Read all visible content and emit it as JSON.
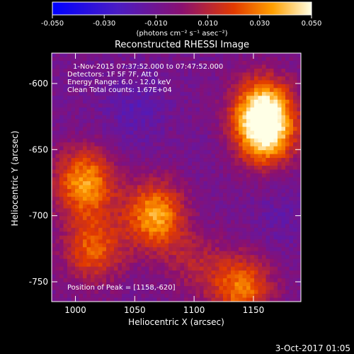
{
  "colorbar": {
    "ticks": [
      "-0.050",
      "-0.030",
      "-0.010",
      "0.010",
      "0.030",
      "0.050"
    ],
    "tick_values": [
      -0.05,
      -0.03,
      -0.01,
      0.01,
      0.03,
      0.05
    ],
    "range": [
      -0.05,
      0.05
    ],
    "unit_label": "(photons cm⁻² s⁻¹ asec⁻²)"
  },
  "chart_data": {
    "type": "heatmap",
    "title": "Reconstructed RHESSI Image",
    "xlabel": "Heliocentric X (arcsec)",
    "ylabel": "Heliocentric Y (arcsec)",
    "xlim": [
      980,
      1190
    ],
    "ylim": [
      -765,
      -577
    ],
    "xticks": [
      1000,
      1050,
      1100,
      1150
    ],
    "yticks": [
      -600,
      -650,
      -700,
      -750
    ],
    "annotations": [
      "1-Nov-2015 07:37:52.000 to 07:47:52.000",
      "Detectors: 1F 5F 7F, Att 0",
      "Energy Range: 6.0 - 12.0 keV",
      "Clean     Total counts: 1.67E+04"
    ],
    "peak_label": "Position of Peak = [1158,-620]",
    "peak": [
      1158,
      -620
    ],
    "bright_regions": [
      {
        "x": 1158,
        "y": -620,
        "value": 0.05
      },
      {
        "x": 1160,
        "y": -640,
        "value": 0.04
      },
      {
        "x": 1008,
        "y": -675,
        "value": 0.042
      },
      {
        "x": 1068,
        "y": -700,
        "value": 0.045
      },
      {
        "x": 1140,
        "y": -755,
        "value": 0.035
      },
      {
        "x": 1015,
        "y": -725,
        "value": 0.03
      },
      {
        "x": 1100,
        "y": -735,
        "value": 0.01
      },
      {
        "x": 1092,
        "y": -705,
        "value": -0.012
      },
      {
        "x": 1050,
        "y": -620,
        "value": -0.02
      },
      {
        "x": 1120,
        "y": -650,
        "value": -0.01
      },
      {
        "x": 1175,
        "y": -700,
        "value": -0.015
      }
    ],
    "background_value": -0.008
  },
  "footer": {
    "date": "3-Oct-2017 01:05"
  }
}
